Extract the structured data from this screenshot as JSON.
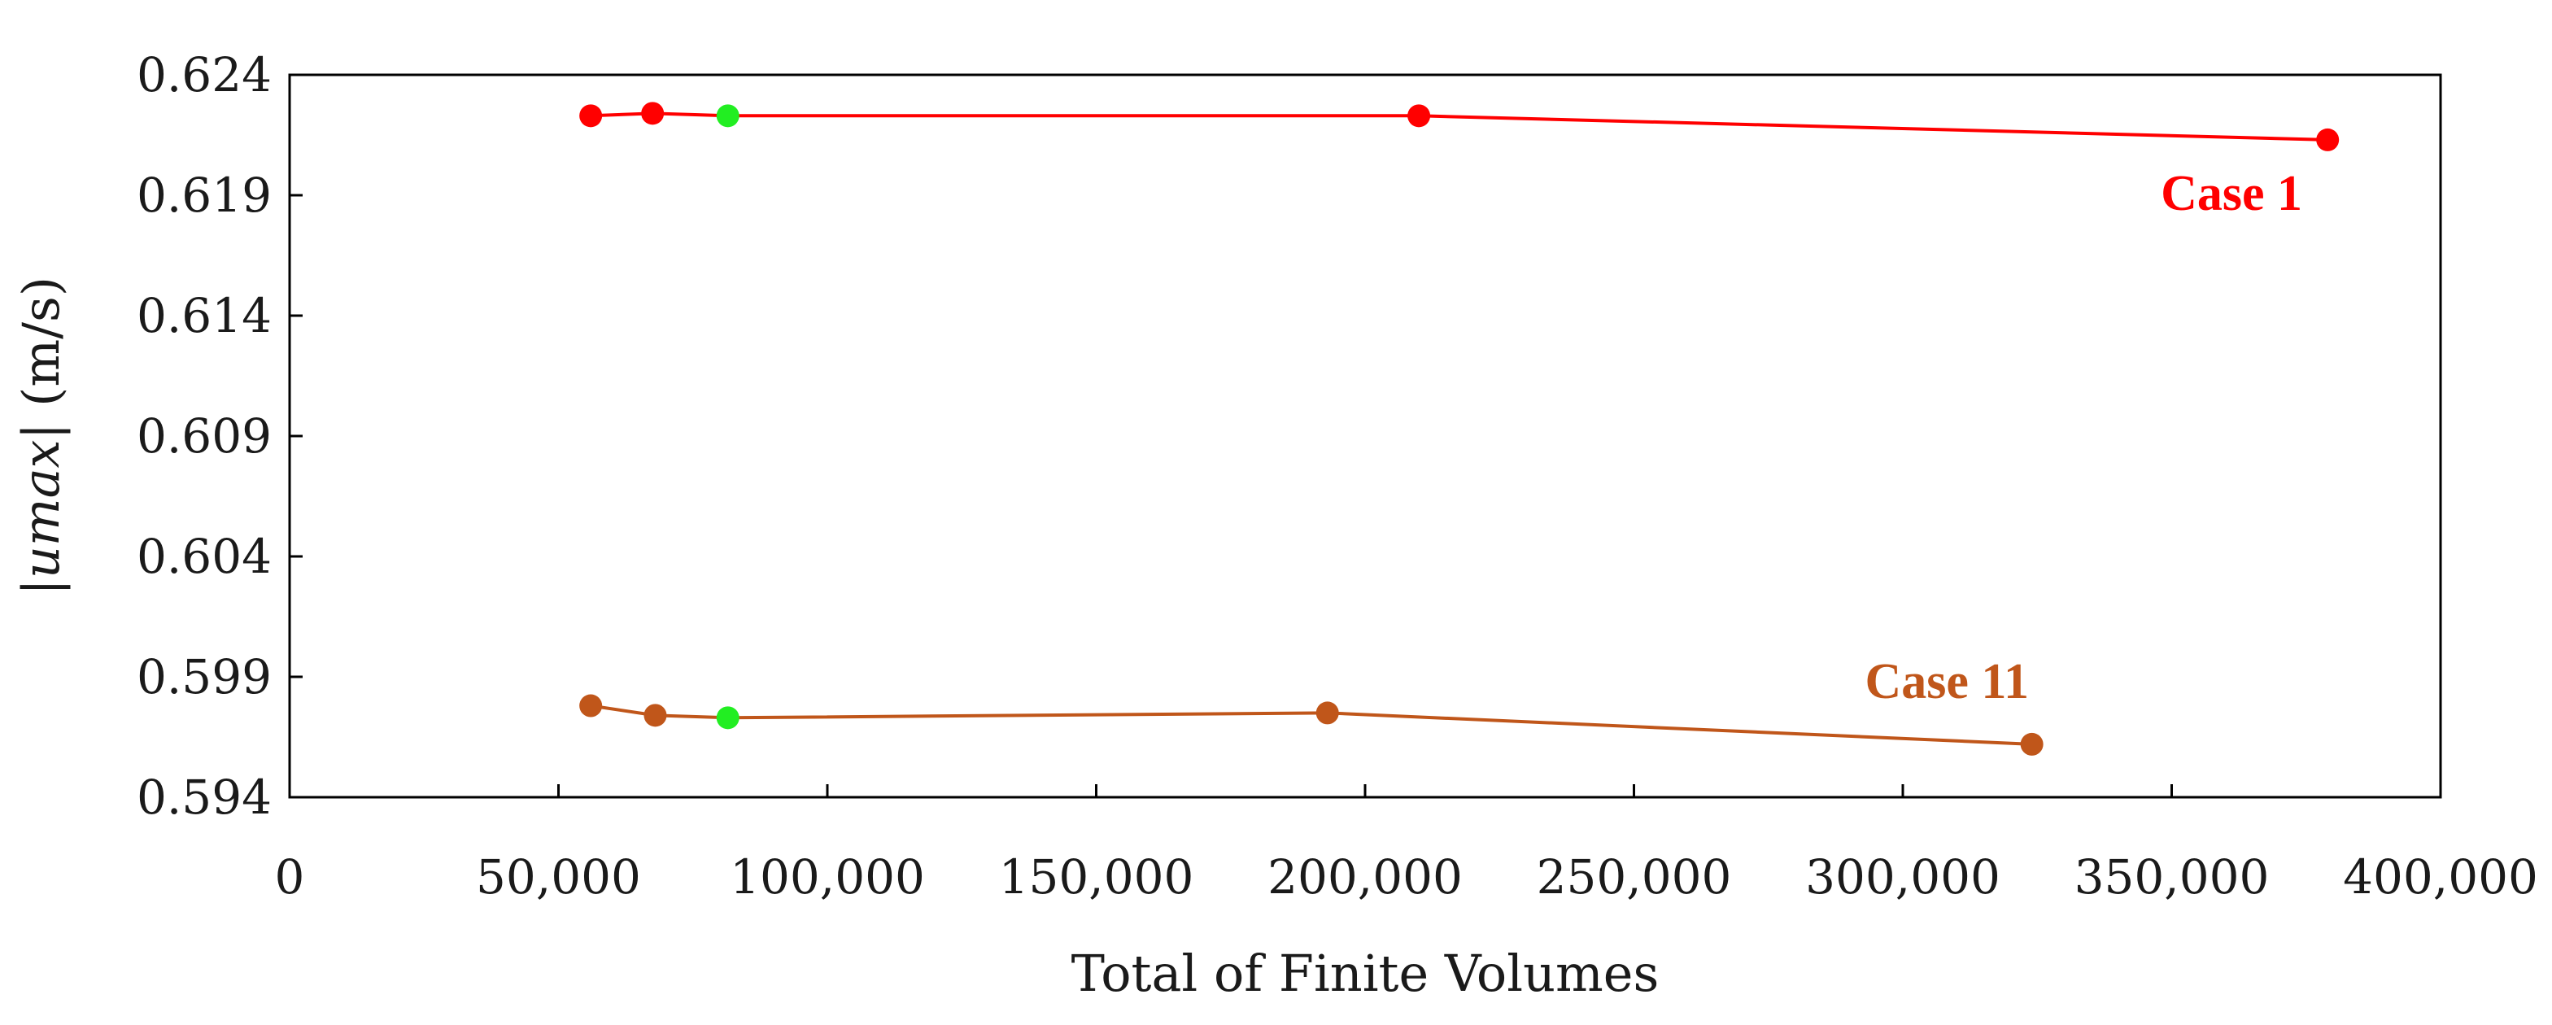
{
  "chart_data": {
    "type": "line",
    "xlabel": "Total of Finite Volumes",
    "ylabel_prefix": "|",
    "ylabel_var": "umax",
    "ylabel_suffix": "| (m/s)",
    "xlim": [
      0,
      400000
    ],
    "ylim": [
      0.594,
      0.624
    ],
    "xticks": [
      0,
      50000,
      100000,
      150000,
      200000,
      250000,
      300000,
      350000,
      400000
    ],
    "xtick_labels": [
      "0",
      "50,000",
      "100,000",
      "150,000",
      "200,000",
      "250,000",
      "300,000",
      "350,000",
      "400,000"
    ],
    "yticks": [
      0.594,
      0.599,
      0.604,
      0.609,
      0.614,
      0.619,
      0.624
    ],
    "ytick_labels": [
      "0.594",
      "0.599",
      "0.604",
      "0.609",
      "0.614",
      "0.619",
      "0.624"
    ],
    "grid": false,
    "highlight_color": "#22ee22",
    "series": [
      {
        "name": "Case 1",
        "color": "#ff0000",
        "x": [
          56000,
          67500,
          81500,
          210000,
          379000
        ],
        "y": [
          0.6223,
          0.6224,
          0.6223,
          0.6223,
          0.6213
        ],
        "highlight_index": 2
      },
      {
        "name": "Case 11",
        "color": "#c0561a",
        "x": [
          56000,
          68000,
          81500,
          193000,
          324000
        ],
        "y": [
          0.5978,
          0.5974,
          0.5973,
          0.5975,
          0.5962
        ],
        "highlight_index": 2
      }
    ]
  }
}
